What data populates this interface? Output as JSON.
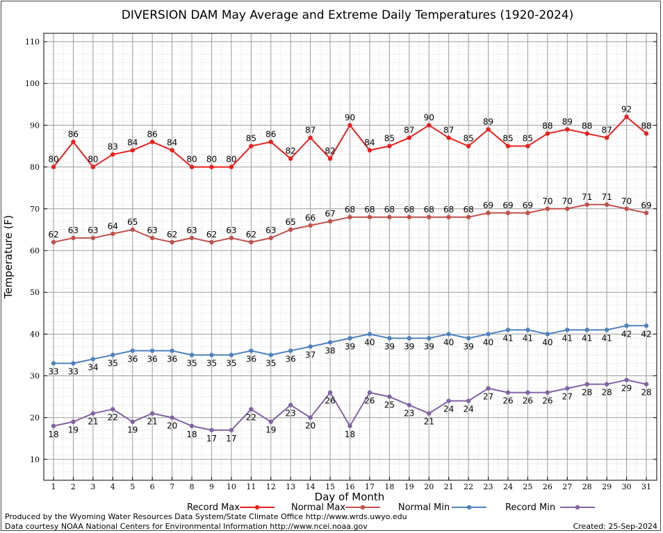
{
  "chart_data": {
    "type": "line",
    "title": "DIVERSION DAM May Average and Extreme Daily Temperatures (1920-2024)",
    "xlabel": "Day of Month",
    "ylabel": "Temperature (F)",
    "ylim": [
      5,
      112
    ],
    "yticks": [
      10,
      20,
      30,
      40,
      50,
      60,
      70,
      80,
      90,
      100,
      110
    ],
    "x": [
      1,
      2,
      3,
      4,
      5,
      6,
      7,
      8,
      9,
      10,
      11,
      12,
      13,
      14,
      15,
      16,
      17,
      18,
      19,
      20,
      21,
      22,
      23,
      24,
      25,
      26,
      27,
      28,
      29,
      30,
      31
    ],
    "grid": true,
    "legend_position": "bottom",
    "series": [
      {
        "name": "Record Max",
        "color": "#e8201e",
        "label_side": "above",
        "values": [
          80,
          86,
          80,
          83,
          84,
          86,
          84,
          80,
          80,
          80,
          85,
          86,
          82,
          87,
          82,
          90,
          84,
          85,
          87,
          90,
          87,
          85,
          89,
          85,
          85,
          88,
          89,
          88,
          87,
          92,
          88
        ]
      },
      {
        "name": "Normal Max",
        "color": "#c0504d",
        "label_side": "above",
        "values": [
          62,
          63,
          63,
          64,
          65,
          63,
          62,
          63,
          62,
          63,
          62,
          63,
          65,
          66,
          67,
          68,
          68,
          68,
          68,
          68,
          68,
          68,
          69,
          69,
          69,
          70,
          70,
          71,
          71,
          70,
          69
        ]
      },
      {
        "name": "Normal Min",
        "color": "#4f81bd",
        "label_side": "below",
        "values": [
          33,
          33,
          34,
          35,
          36,
          36,
          36,
          35,
          35,
          35,
          36,
          35,
          36,
          37,
          38,
          39,
          40,
          39,
          39,
          39,
          40,
          39,
          40,
          41,
          41,
          40,
          41,
          41,
          41,
          42,
          42
        ]
      },
      {
        "name": "Record Min",
        "color": "#8064a2",
        "label_side": "below",
        "values": [
          18,
          19,
          21,
          22,
          19,
          21,
          20,
          18,
          17,
          17,
          22,
          19,
          23,
          20,
          26,
          18,
          26,
          25,
          23,
          21,
          24,
          24,
          27,
          26,
          26,
          26,
          27,
          28,
          28,
          29,
          28
        ]
      }
    ]
  },
  "footer": {
    "produced_by": "Produced by the Wyoming Water Resources Data System/State Climate Office http://www.wrds.uwyo.edu",
    "data_courtesy": "Data courtesy NOAA National Centers for Environmental Information http://www.ncei.noaa.gov",
    "created": "Created:  25-Sep-2024"
  }
}
